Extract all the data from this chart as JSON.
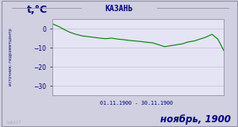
{
  "title": "КАЗАНЬ",
  "ylabel": "t,°C",
  "xlabel_range": "01.11.1900 - 30.11.1900",
  "footer_text": "ноябрь, 1900",
  "source_text": "источник: гидрометцентр",
  "watermark": "lab127",
  "ylim": [
    -35,
    5
  ],
  "yticks": [
    0,
    -10,
    -20,
    -30
  ],
  "bg_color": "#d0d0e0",
  "plot_bg_color": "#e4e4f4",
  "line_color": "#008000",
  "title_color": "#000080",
  "label_color": "#000080",
  "footer_color": "#000080",
  "source_color": "#000080",
  "watermark_color": "#a8a8b8",
  "grid_color": "#b8b8cc",
  "border_color": "#9090a8",
  "temperatures": [
    2.5,
    1.2,
    -0.5,
    -2.0,
    -3.0,
    -3.8,
    -4.2,
    -4.6,
    -5.0,
    -5.3,
    -5.0,
    -5.5,
    -5.8,
    -6.2,
    -6.5,
    -6.8,
    -7.2,
    -7.5,
    -8.5,
    -9.5,
    -9.0,
    -8.5,
    -8.0,
    -7.0,
    -6.5,
    -5.5,
    -4.5,
    -3.0,
    -5.5,
    -11.5
  ],
  "days": [
    1,
    2,
    3,
    4,
    5,
    6,
    7,
    8,
    9,
    10,
    11,
    12,
    13,
    14,
    15,
    16,
    17,
    18,
    19,
    20,
    21,
    22,
    23,
    24,
    25,
    26,
    27,
    28,
    29,
    30
  ]
}
